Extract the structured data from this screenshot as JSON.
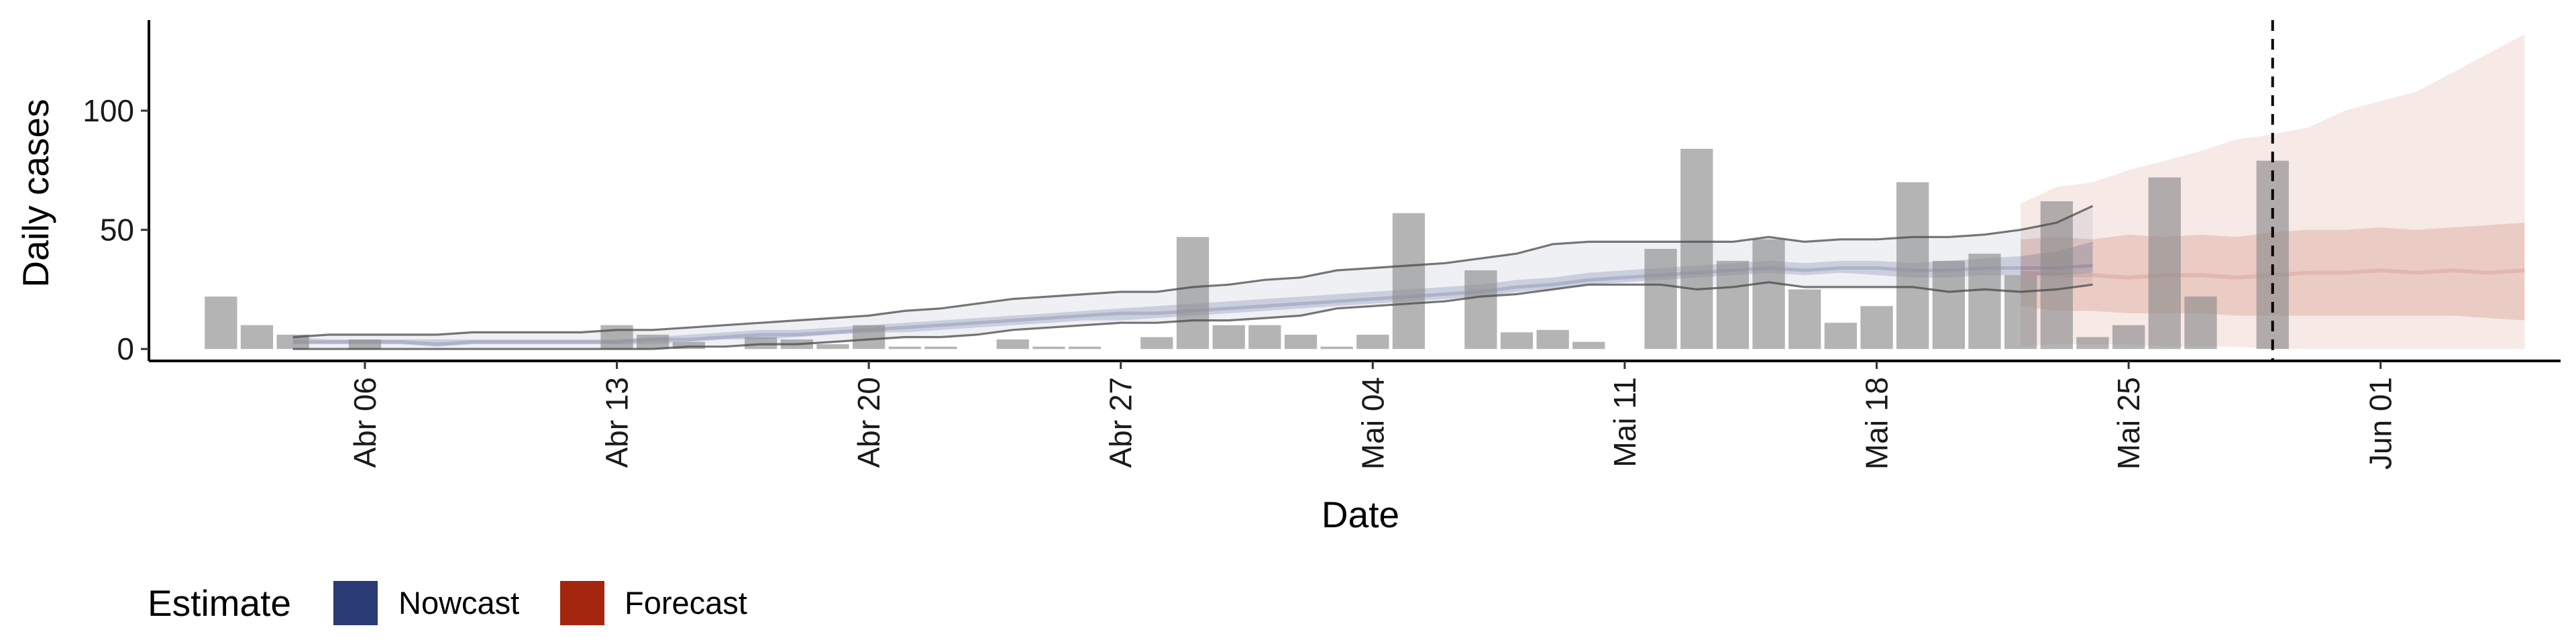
{
  "chart_data": {
    "type": "bar",
    "xlabel": "Date",
    "ylabel": "Daily cases",
    "ylim": [
      -5,
      138
    ],
    "xlim": [
      "2020-03-31",
      "2020-06-06"
    ],
    "yticks": [
      0,
      50,
      100
    ],
    "xticks": [
      {
        "date": "2020-04-06",
        "label": "Abr 06"
      },
      {
        "date": "2020-04-13",
        "label": "Abr 13"
      },
      {
        "date": "2020-04-20",
        "label": "Abr 20"
      },
      {
        "date": "2020-04-27",
        "label": "Abr 27"
      },
      {
        "date": "2020-05-04",
        "label": "Mai 04"
      },
      {
        "date": "2020-05-11",
        "label": "Mai 11"
      },
      {
        "date": "2020-05-18",
        "label": "Mai 18"
      },
      {
        "date": "2020-05-25",
        "label": "Mai 25"
      },
      {
        "date": "2020-06-01",
        "label": "Jun 01"
      }
    ],
    "cutoff_date": "2020-05-29",
    "observed_cases": {
      "start_date": "2020-04-02",
      "values": [
        22,
        10,
        6,
        0,
        4,
        0,
        0,
        0,
        0,
        0,
        0,
        10,
        6,
        3,
        0,
        5,
        4,
        2,
        10,
        1,
        1,
        0,
        4,
        1,
        1,
        0,
        5,
        47,
        10,
        10,
        6,
        1,
        6,
        57,
        0,
        33,
        7,
        8,
        3,
        0,
        42,
        84,
        37,
        46,
        25,
        11,
        18,
        70,
        37,
        40,
        31,
        62,
        5,
        10,
        72,
        22,
        0,
        79
      ]
    },
    "series": [
      {
        "name": "Nowcast",
        "color": "#2a3a75",
        "start_date": "2020-04-04",
        "median": [
          3,
          3,
          3,
          3,
          2,
          3,
          3,
          3,
          3,
          3,
          4,
          4,
          5,
          6,
          6,
          7,
          8,
          9,
          10,
          11,
          12,
          13,
          14,
          15,
          15,
          16,
          17,
          18,
          19,
          20,
          21,
          22,
          23,
          24,
          26,
          27,
          29,
          30,
          31,
          32,
          33,
          34,
          33,
          34,
          34,
          33,
          33,
          34,
          34,
          34,
          35
        ],
        "inner": [
          [
            2,
            5
          ],
          [
            2,
            4
          ],
          [
            2,
            4
          ],
          [
            2,
            4
          ],
          [
            1,
            4
          ],
          [
            2,
            4
          ],
          [
            2,
            4
          ],
          [
            2,
            4
          ],
          [
            2,
            4
          ],
          [
            2,
            4
          ],
          [
            2,
            5
          ],
          [
            3,
            6
          ],
          [
            4,
            7
          ],
          [
            4,
            8
          ],
          [
            5,
            8
          ],
          [
            6,
            9
          ],
          [
            7,
            10
          ],
          [
            7,
            11
          ],
          [
            8,
            12
          ],
          [
            9,
            13
          ],
          [
            10,
            14
          ],
          [
            11,
            15
          ],
          [
            12,
            16
          ],
          [
            12,
            17
          ],
          [
            13,
            18
          ],
          [
            14,
            19
          ],
          [
            15,
            20
          ],
          [
            16,
            21
          ],
          [
            17,
            22
          ],
          [
            18,
            23
          ],
          [
            19,
            24
          ],
          [
            20,
            25
          ],
          [
            21,
            26
          ],
          [
            22,
            27
          ],
          [
            24,
            29
          ],
          [
            25,
            30
          ],
          [
            27,
            32
          ],
          [
            28,
            33
          ],
          [
            29,
            34
          ],
          [
            30,
            35
          ],
          [
            31,
            36
          ],
          [
            32,
            37
          ],
          [
            31,
            36
          ],
          [
            32,
            37
          ],
          [
            31,
            37
          ],
          [
            30,
            36
          ],
          [
            30,
            37
          ],
          [
            31,
            38
          ],
          [
            31,
            39
          ],
          [
            31,
            41
          ],
          [
            32,
            45
          ]
        ],
        "outer": [
          [
            0,
            5
          ],
          [
            0,
            6
          ],
          [
            0,
            6
          ],
          [
            0,
            6
          ],
          [
            0,
            6
          ],
          [
            0,
            7
          ],
          [
            0,
            7
          ],
          [
            0,
            7
          ],
          [
            0,
            7
          ],
          [
            0,
            8
          ],
          [
            0,
            8
          ],
          [
            1,
            9
          ],
          [
            1,
            10
          ],
          [
            2,
            11
          ],
          [
            2,
            12
          ],
          [
            3,
            13
          ],
          [
            4,
            14
          ],
          [
            5,
            16
          ],
          [
            5,
            17
          ],
          [
            6,
            19
          ],
          [
            8,
            21
          ],
          [
            9,
            22
          ],
          [
            10,
            23
          ],
          [
            11,
            24
          ],
          [
            11,
            24
          ],
          [
            12,
            26
          ],
          [
            12,
            27
          ],
          [
            13,
            29
          ],
          [
            14,
            30
          ],
          [
            17,
            33
          ],
          [
            18,
            34
          ],
          [
            19,
            35
          ],
          [
            20,
            36
          ],
          [
            22,
            38
          ],
          [
            23,
            40
          ],
          [
            25,
            44
          ],
          [
            27,
            45
          ],
          [
            27,
            45
          ],
          [
            27,
            45
          ],
          [
            25,
            45
          ],
          [
            26,
            45
          ],
          [
            28,
            47
          ],
          [
            26,
            45
          ],
          [
            26,
            46
          ],
          [
            26,
            46
          ],
          [
            26,
            47
          ],
          [
            24,
            47
          ],
          [
            25,
            48
          ],
          [
            24,
            50
          ],
          [
            25,
            53
          ],
          [
            27,
            60
          ]
        ]
      },
      {
        "name": "Forecast",
        "color": "#a5260e",
        "start_date": "2020-05-22",
        "median": [
          32,
          31,
          31,
          30,
          31,
          31,
          30,
          31,
          32,
          32,
          33,
          32,
          33,
          32,
          33
        ],
        "inner": [
          [
            18,
            46
          ],
          [
            16,
            47
          ],
          [
            16,
            46
          ],
          [
            15,
            48
          ],
          [
            15,
            47
          ],
          [
            15,
            48
          ],
          [
            14,
            47
          ],
          [
            14,
            49
          ],
          [
            14,
            50
          ],
          [
            14,
            50
          ],
          [
            14,
            51
          ],
          [
            14,
            50
          ],
          [
            14,
            51
          ],
          [
            13,
            52
          ],
          [
            12,
            53
          ]
        ],
        "outer": [
          [
            1,
            61
          ],
          [
            2,
            68
          ],
          [
            2,
            70
          ],
          [
            2,
            75
          ],
          [
            1,
            79
          ],
          [
            1,
            83
          ],
          [
            1,
            88
          ],
          [
            0,
            90
          ],
          [
            0,
            93
          ],
          [
            0,
            100
          ],
          [
            0,
            104
          ],
          [
            0,
            108
          ],
          [
            0,
            116
          ],
          [
            0,
            124
          ],
          [
            0,
            132
          ]
        ]
      }
    ],
    "legend": {
      "title": "Estimate",
      "position": "bottom-left",
      "items": [
        "Nowcast",
        "Forecast"
      ]
    },
    "grid": false
  }
}
